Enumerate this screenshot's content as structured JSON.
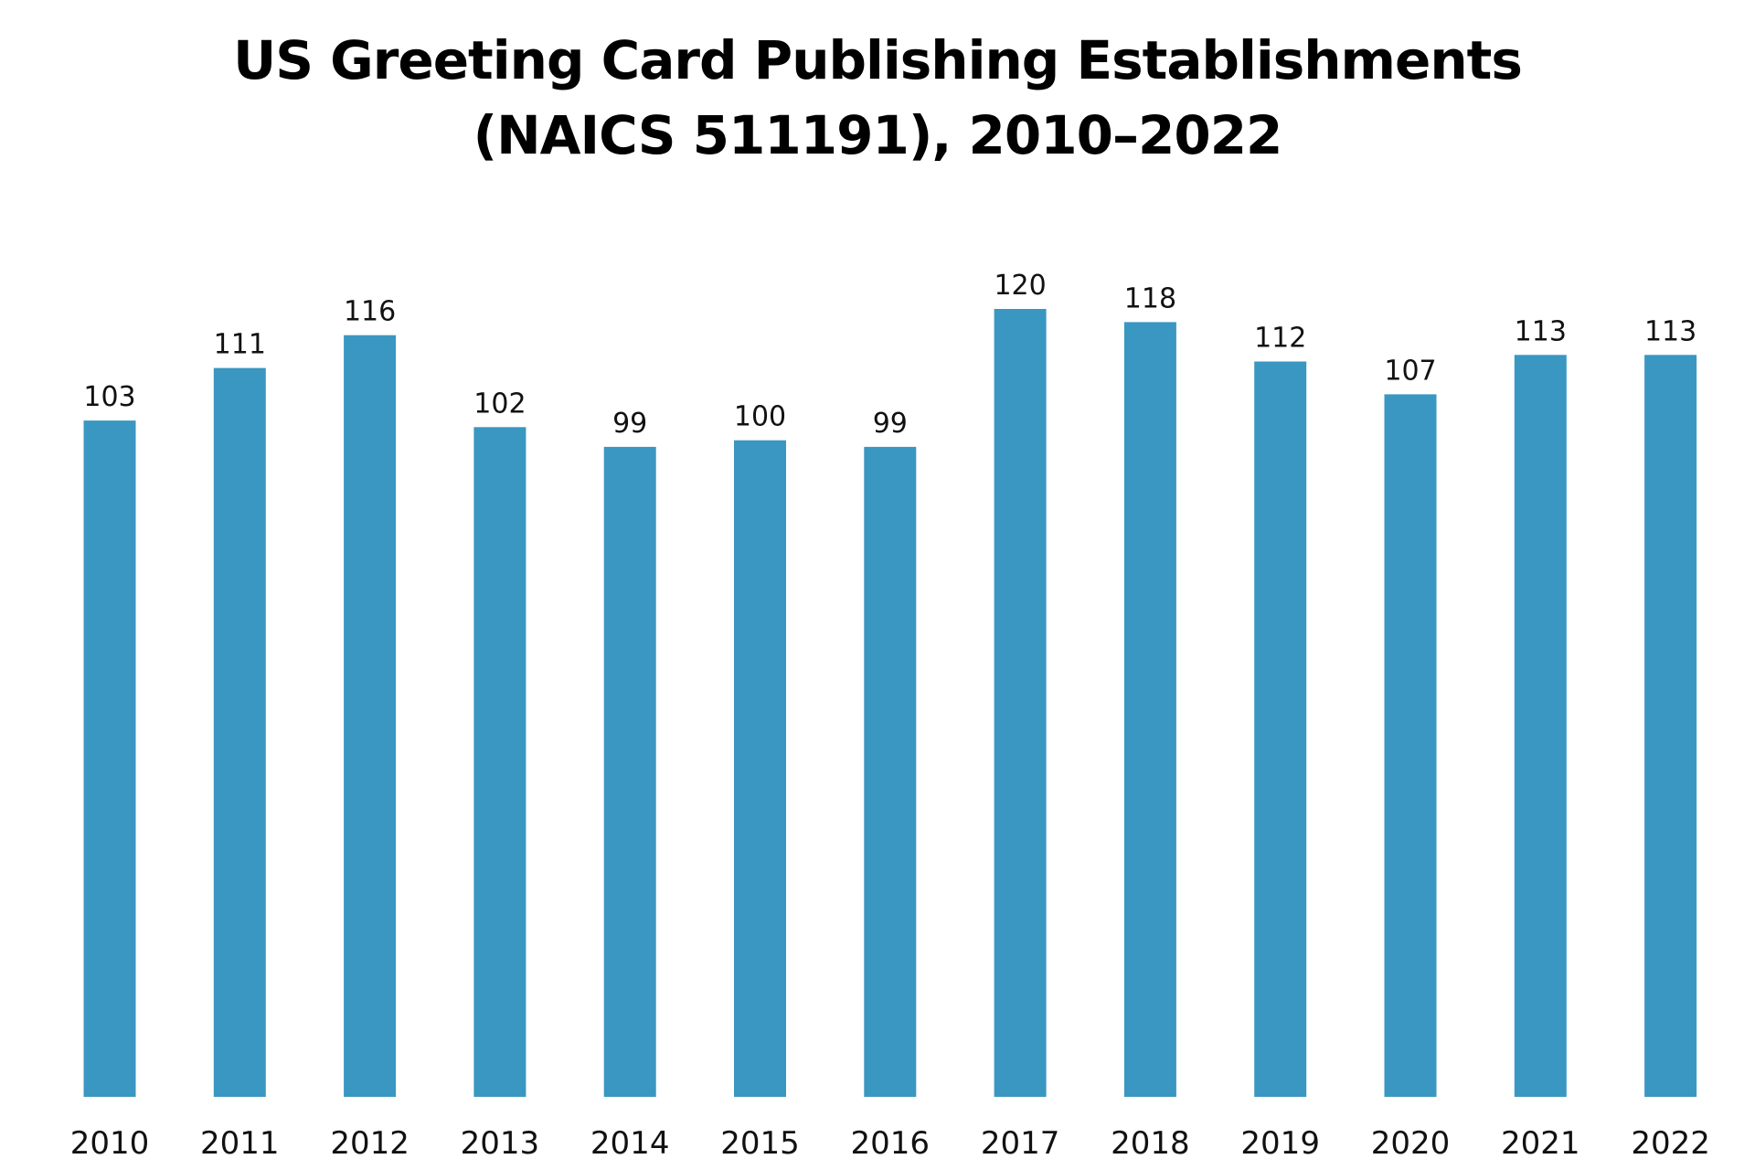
{
  "chart_data": {
    "type": "bar",
    "title_lines": [
      "US Greeting Card Publishing Establishments",
      "(NAICS 511191), 2010–2022"
    ],
    "categories": [
      "2010",
      "2011",
      "2012",
      "2013",
      "2014",
      "2015",
      "2016",
      "2017",
      "2018",
      "2019",
      "2020",
      "2021",
      "2022"
    ],
    "values": [
      103,
      111,
      116,
      102,
      99,
      100,
      99,
      120,
      118,
      112,
      107,
      113,
      113
    ],
    "value_labels": [
      "103",
      "111",
      "116",
      "102",
      "99",
      "100",
      "99",
      "120",
      "118",
      "112",
      "107",
      "113",
      "113"
    ],
    "xlabel": "",
    "ylabel": "",
    "ylim": [
      0,
      120
    ],
    "grid": false,
    "legend": "none",
    "bar_color": "#3a97c1"
  }
}
